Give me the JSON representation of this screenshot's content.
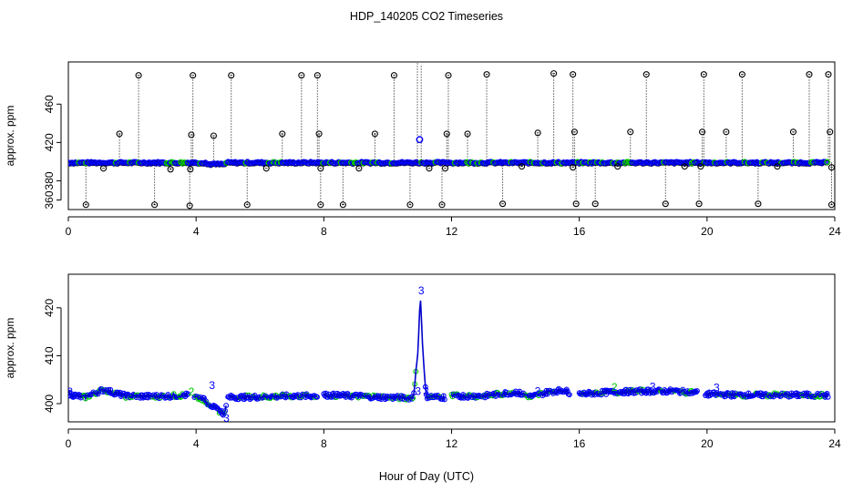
{
  "page_title": "HDP_140205  CO2 Timeseries",
  "x_axis_label": "Hour of Day (UTC)",
  "colors": {
    "raw": "#000000",
    "blue": "#0000ff",
    "green": "#00cc00",
    "line": "#0000cc"
  },
  "chart_data": [
    {
      "type": "scatter",
      "ylabel": "approx. ppm",
      "xlim": [
        0,
        24
      ],
      "ylim": [
        350,
        504
      ],
      "xticks": [
        "0",
        "4",
        "8",
        "12",
        "16",
        "20",
        "24"
      ],
      "yticks": [
        "360",
        "380",
        "420",
        "460"
      ],
      "baseline_hours": [
        0,
        24
      ],
      "baseline_ppm": 399,
      "high_spikes": [
        {
          "x": 2.2,
          "y": 490
        },
        {
          "x": 3.9,
          "y": 490
        },
        {
          "x": 5.1,
          "y": 490
        },
        {
          "x": 7.3,
          "y": 490
        },
        {
          "x": 7.8,
          "y": 490
        },
        {
          "x": 10.2,
          "y": 490
        },
        {
          "x": 11.9,
          "y": 490
        },
        {
          "x": 13.1,
          "y": 491
        },
        {
          "x": 15.2,
          "y": 492
        },
        {
          "x": 15.8,
          "y": 491
        },
        {
          "x": 18.1,
          "y": 491
        },
        {
          "x": 19.9,
          "y": 491
        },
        {
          "x": 21.1,
          "y": 491
        },
        {
          "x": 23.2,
          "y": 491
        },
        {
          "x": 23.8,
          "y": 491
        },
        {
          "x": 1.6,
          "y": 429
        },
        {
          "x": 3.85,
          "y": 428
        },
        {
          "x": 4.55,
          "y": 427
        },
        {
          "x": 6.7,
          "y": 429
        },
        {
          "x": 7.85,
          "y": 429
        },
        {
          "x": 9.6,
          "y": 429
        },
        {
          "x": 11.85,
          "y": 429
        },
        {
          "x": 12.5,
          "y": 429
        },
        {
          "x": 14.7,
          "y": 430
        },
        {
          "x": 15.85,
          "y": 431
        },
        {
          "x": 17.6,
          "y": 431
        },
        {
          "x": 19.85,
          "y": 431
        },
        {
          "x": 20.6,
          "y": 431
        },
        {
          "x": 22.7,
          "y": 431
        },
        {
          "x": 23.85,
          "y": 431
        }
      ],
      "low_spikes": [
        {
          "x": 0.55,
          "y": 355
        },
        {
          "x": 2.7,
          "y": 355
        },
        {
          "x": 3.8,
          "y": 354
        },
        {
          "x": 5.6,
          "y": 355
        },
        {
          "x": 7.9,
          "y": 355
        },
        {
          "x": 8.6,
          "y": 355
        },
        {
          "x": 10.7,
          "y": 355
        },
        {
          "x": 11.7,
          "y": 355
        },
        {
          "x": 13.6,
          "y": 356
        },
        {
          "x": 15.9,
          "y": 356
        },
        {
          "x": 16.5,
          "y": 356
        },
        {
          "x": 18.7,
          "y": 356
        },
        {
          "x": 19.75,
          "y": 356
        },
        {
          "x": 21.6,
          "y": 356
        },
        {
          "x": 23.9,
          "y": 355
        },
        {
          "x": 1.1,
          "y": 393
        },
        {
          "x": 3.2,
          "y": 392
        },
        {
          "x": 3.82,
          "y": 392
        },
        {
          "x": 6.2,
          "y": 393
        },
        {
          "x": 7.9,
          "y": 393
        },
        {
          "x": 9.1,
          "y": 393
        },
        {
          "x": 11.3,
          "y": 393
        },
        {
          "x": 11.8,
          "y": 393
        },
        {
          "x": 14.2,
          "y": 395
        },
        {
          "x": 15.8,
          "y": 394
        },
        {
          "x": 17.2,
          "y": 395
        },
        {
          "x": 19.3,
          "y": 395
        },
        {
          "x": 19.8,
          "y": 395
        },
        {
          "x": 22.2,
          "y": 395
        },
        {
          "x": 23.9,
          "y": 394
        }
      ],
      "event": {
        "x": 11.0,
        "y": 423
      }
    },
    {
      "type": "line",
      "ylabel": "approx. ppm",
      "xlim": [
        0,
        24
      ],
      "ylim": [
        396.2,
        427
      ],
      "xticks": [
        "0",
        "4",
        "8",
        "12",
        "16",
        "20",
        "24"
      ],
      "yticks": [
        "400",
        "410",
        "420"
      ],
      "segments": [
        {
          "x": [
            0.0,
            0.5,
            1.1,
            1.8,
            2.6,
            3.2,
            3.75
          ],
          "y": [
            402.0,
            401.3,
            402.9,
            401.6,
            401.5,
            401.6,
            401.8
          ]
        },
        {
          "x": [
            3.95,
            4.2,
            4.6,
            4.9,
            4.95
          ],
          "y": [
            401.5,
            401.0,
            399.0,
            397.8,
            400.5
          ]
        },
        {
          "x": [
            5.0,
            6.0,
            7.0,
            7.8
          ],
          "y": [
            401.3,
            401.4,
            401.6,
            401.6
          ]
        },
        {
          "x": [
            8.0,
            9.0,
            10.0,
            10.8,
            10.95,
            11.02,
            11.1,
            11.2,
            11.8
          ],
          "y": [
            401.8,
            401.6,
            401.3,
            401.2,
            411.0,
            423.0,
            411.0,
            401.5,
            401.3
          ]
        },
        {
          "x": [
            12.0,
            13.0,
            14.0,
            14.5,
            15.0,
            15.5,
            15.7
          ],
          "y": [
            401.6,
            401.6,
            402.4,
            401.4,
            402.4,
            402.8,
            402.3
          ]
        },
        {
          "x": [
            16.0,
            17.0,
            18.0,
            19.0,
            19.7
          ],
          "y": [
            402.0,
            402.4,
            402.6,
            402.6,
            402.3
          ]
        },
        {
          "x": [
            19.95,
            21.0,
            22.0,
            23.0,
            23.8
          ],
          "y": [
            402.0,
            401.8,
            401.8,
            401.8,
            401.7
          ]
        }
      ],
      "markers": [
        {
          "x": 0.05,
          "y": 402.5,
          "label": "3"
        },
        {
          "x": 3.85,
          "y": 402.5,
          "label": "2"
        },
        {
          "x": 4.5,
          "y": 403.8,
          "label": "3"
        },
        {
          "x": 4.95,
          "y": 397.0,
          "label": "3"
        },
        {
          "x": 11.05,
          "y": 423.6,
          "label": "3"
        },
        {
          "x": 10.95,
          "y": 402.6,
          "label": "3"
        },
        {
          "x": 11.2,
          "y": 402.6,
          "label": "3"
        },
        {
          "x": 14.7,
          "y": 402.6,
          "label": "3"
        },
        {
          "x": 17.1,
          "y": 403.4,
          "label": "2"
        },
        {
          "x": 18.3,
          "y": 403.5,
          "label": "3"
        },
        {
          "x": 20.3,
          "y": 403.3,
          "label": "3"
        }
      ]
    }
  ]
}
